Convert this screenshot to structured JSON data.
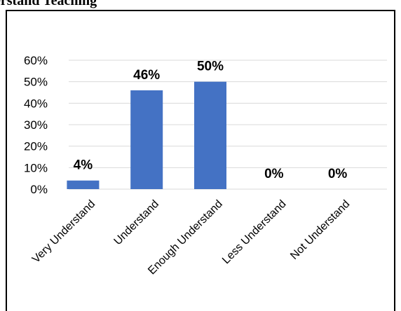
{
  "heading": "erstand Teaching",
  "colors": {
    "bar": "#4472C4",
    "grid": "#D9D9D9"
  },
  "chart_data": {
    "type": "bar",
    "categories": [
      "Very Understand",
      "Understand",
      "Enough Understand",
      "Less Understand",
      "Not Understand"
    ],
    "values": [
      4,
      46,
      50,
      0,
      0
    ],
    "data_labels": [
      "4%",
      "46%",
      "50%",
      "0%",
      "0%"
    ],
    "y_ticks": [
      0,
      10,
      20,
      30,
      40,
      50,
      60
    ],
    "y_tick_labels": [
      "0%",
      "10%",
      "20%",
      "30%",
      "40%",
      "50%",
      "60%"
    ],
    "ylim": [
      0,
      60
    ],
    "grid": true,
    "legend": "none"
  }
}
